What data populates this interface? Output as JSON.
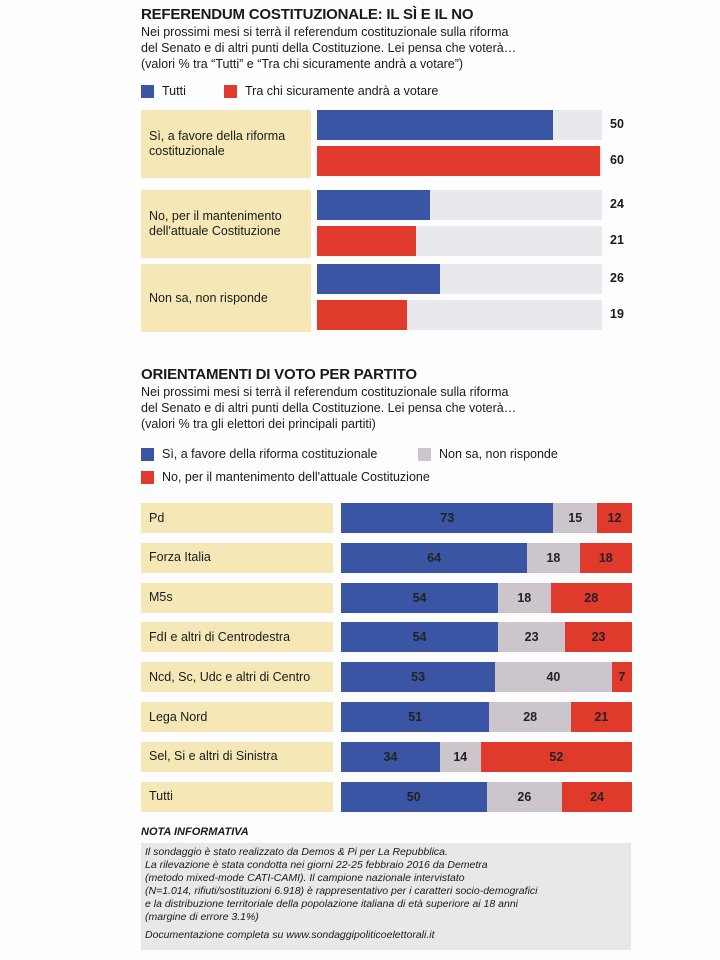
{
  "chart_data": [
    {
      "type": "bar",
      "title": "REFERENDUM COSTITUZIONALE: IL SÌ E IL NO",
      "subtitle": [
        "Nei prossimi mesi si terrà il referendum costituzionale sulla riforma",
        "del Senato e di altri punti della Costituzione. Lei pensa che voterà…",
        "(valori % tra “Tutti” e “Tra chi sicuramente andrà a votare”)"
      ],
      "categories": [
        "Sì, a favore della riforma costituzionale",
        "No, per il mantenimento dell'attuale Costituzione",
        "Non sa, non risponde"
      ],
      "series": [
        {
          "name": "Tutti",
          "values": [
            50,
            24,
            26
          ],
          "color": "#3a55a4"
        },
        {
          "name": "Tra chi sicuramente andrà a votare",
          "values": [
            60,
            21,
            19
          ],
          "color": "#e03a2c"
        }
      ],
      "xlim": [
        0,
        100
      ]
    },
    {
      "type": "bar",
      "stacked": true,
      "title": "ORIENTAMENTI DI VOTO PER PARTITO",
      "subtitle": [
        "Nei prossimi mesi si terrà il referendum costituzionale sulla riforma",
        "del Senato e di altri punti della Costituzione. Lei pensa che voterà…",
        "(valori % tra gli elettori dei principali partiti)"
      ],
      "categories": [
        "Pd",
        "Forza Italia",
        "M5s",
        "FdI e altri di Centrodestra",
        "Ncd, Sc, Udc e altri di Centro",
        "Lega Nord",
        "Sel, Si e altri di Sinistra",
        "Tutti"
      ],
      "series": [
        {
          "name": "Sì, a favore della riforma costituzionale",
          "values": [
            73,
            64,
            54,
            54,
            53,
            51,
            34,
            50
          ],
          "color": "#3a55a4"
        },
        {
          "name": "Non sa, non risponde",
          "values": [
            15,
            18,
            18,
            23,
            40,
            28,
            14,
            26
          ],
          "color": "#cdc5cc"
        },
        {
          "name": "No, per il mantenimento dell'attuale Costituzione",
          "values": [
            12,
            18,
            28,
            23,
            7,
            21,
            52,
            24
          ],
          "color": "#e03a2c"
        }
      ],
      "xlim": [
        0,
        100
      ]
    }
  ],
  "nota": {
    "title": "NOTA INFORMATIVA",
    "lines": [
      "Il sondaggio è stato realizzato da Demos & Pi per La Repubblica.",
      "La rilevazione è stata condotta nei giorni 22-25 febbraio 2016 da Demetra",
      "(metodo mixed-mode CATI-CAMI). Il campione nazionale intervistato",
      "(N=1.014, rifiuti/sostituzioni 6.918) è rappresentativo per i caratteri socio-demografici",
      "e la distribuzione territoriale della popolazione italiana di età superiore ai 18 anni",
      "(margine di errore 3.1%)"
    ],
    "doc": "Documentazione completa su www.sondaggipoliticoelettorali.it"
  }
}
